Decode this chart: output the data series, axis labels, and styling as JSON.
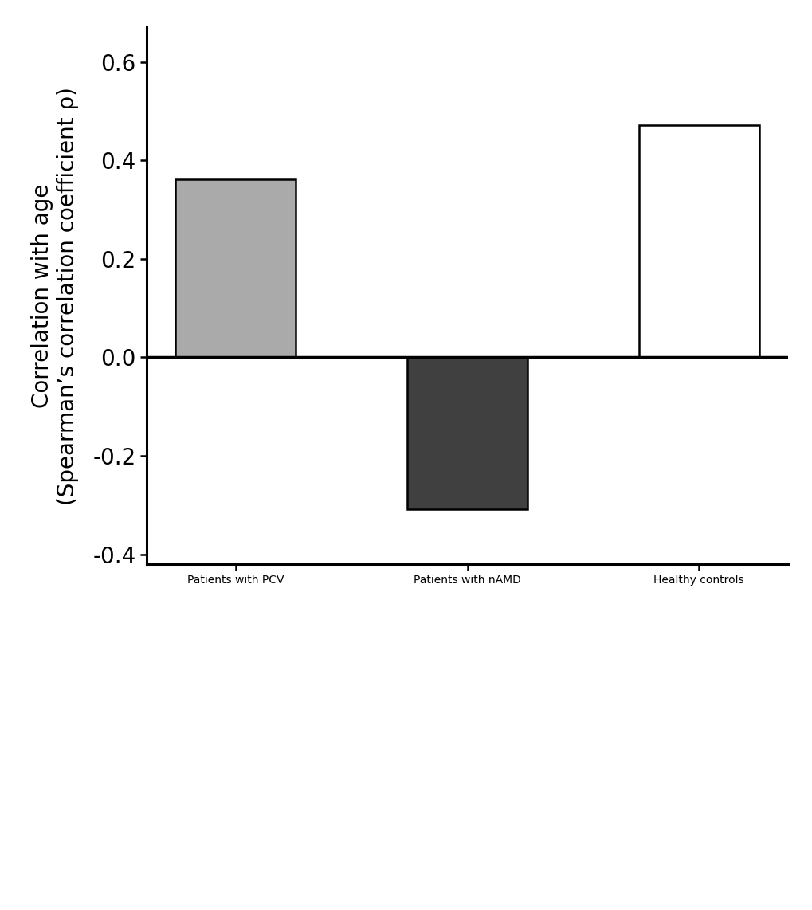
{
  "categories": [
    "Patients with PCV",
    "Patients with nAMD",
    "Healthy controls"
  ],
  "values": [
    0.362,
    -0.308,
    0.472
  ],
  "bar_colors": [
    "#aaaaaa",
    "#404040",
    "#ffffff"
  ],
  "bar_edgecolors": [
    "#000000",
    "#000000",
    "#000000"
  ],
  "ylabel_line1": "Correlation with age",
  "ylabel_line2": "(Spearman’s correlation coefficient ρ)",
  "ylim": [
    -0.42,
    0.67
  ],
  "yticks": [
    -0.4,
    -0.2,
    0.0,
    0.2,
    0.4,
    0.6
  ],
  "bar_width": 0.52,
  "background_color": "#ffffff",
  "axis_linewidth": 2.2,
  "bar_linewidth": 1.8,
  "tick_fontsize": 20,
  "label_fontsize": 20,
  "ylabel_fontsize": 20
}
